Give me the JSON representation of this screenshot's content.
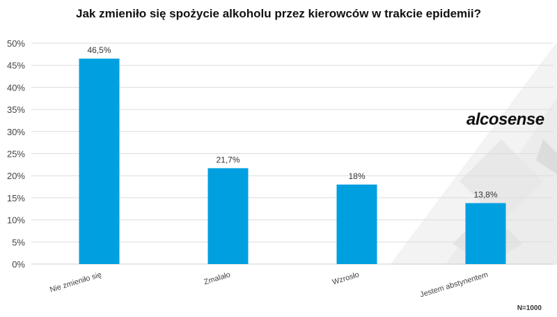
{
  "chart_data": {
    "type": "bar",
    "title": "Jak zmieniło się spożycie alkoholu przez kierowców w trakcie epidemii?",
    "categories": [
      "Nie zmieniło się",
      "Zmalało",
      "Wzrosło",
      "Jestem abstynentem"
    ],
    "values": [
      46.5,
      21.7,
      18,
      13.8
    ],
    "value_labels": [
      "46,5%",
      "21,7%",
      "18%",
      "13,8%"
    ],
    "yticks": [
      0,
      5,
      10,
      15,
      20,
      25,
      30,
      35,
      40,
      45,
      50
    ],
    "ytick_labels": [
      "0%",
      "5%",
      "10%",
      "15%",
      "20%",
      "25%",
      "30%",
      "35%",
      "40%",
      "45%",
      "50%"
    ],
    "ylim": [
      0,
      50
    ],
    "grid": true,
    "bar_color": "#00a0e0"
  },
  "brand": {
    "logo_text": "alcosense"
  },
  "note": "N=1000"
}
